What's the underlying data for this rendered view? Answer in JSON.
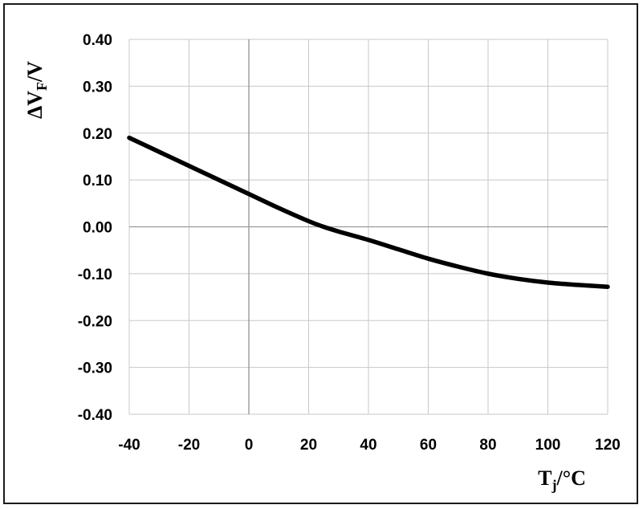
{
  "chart_data": {
    "type": "line",
    "title": "",
    "xlabel": "T_j/°C",
    "xlabel_parts": {
      "base": "T",
      "sub": "j",
      "rest": "/°C"
    },
    "ylabel": "ΔV_F/V",
    "ylabel_parts": {
      "base": "ΔV",
      "sub": "F",
      "rest": "/V"
    },
    "xlim": [
      -40,
      120
    ],
    "ylim": [
      -0.4,
      0.4
    ],
    "x_ticks": [
      "-40",
      "-20",
      "0",
      "20",
      "40",
      "60",
      "80",
      "100",
      "120"
    ],
    "y_ticks": [
      "0.40",
      "0.30",
      "0.20",
      "0.10",
      "0.00",
      "-0.10",
      "-0.20",
      "-0.30",
      "-0.40"
    ],
    "x_tick_values": [
      -40,
      -20,
      0,
      20,
      40,
      60,
      80,
      100,
      120
    ],
    "y_tick_values": [
      0.4,
      0.3,
      0.2,
      0.1,
      0.0,
      -0.1,
      -0.2,
      -0.3,
      -0.4
    ],
    "grid": true,
    "series": [
      {
        "color": "#000000",
        "points": [
          [
            -40,
            0.19
          ],
          [
            -30,
            0.16
          ],
          [
            -20,
            0.13
          ],
          [
            -10,
            0.1
          ],
          [
            0,
            0.07
          ],
          [
            10,
            0.04
          ],
          [
            20,
            0.012
          ],
          [
            25,
            0.0
          ],
          [
            30,
            -0.01
          ],
          [
            40,
            -0.028
          ],
          [
            50,
            -0.048
          ],
          [
            60,
            -0.068
          ],
          [
            70,
            -0.085
          ],
          [
            80,
            -0.1
          ],
          [
            90,
            -0.111
          ],
          [
            100,
            -0.119
          ],
          [
            110,
            -0.124
          ],
          [
            120,
            -0.128
          ]
        ]
      }
    ]
  }
}
